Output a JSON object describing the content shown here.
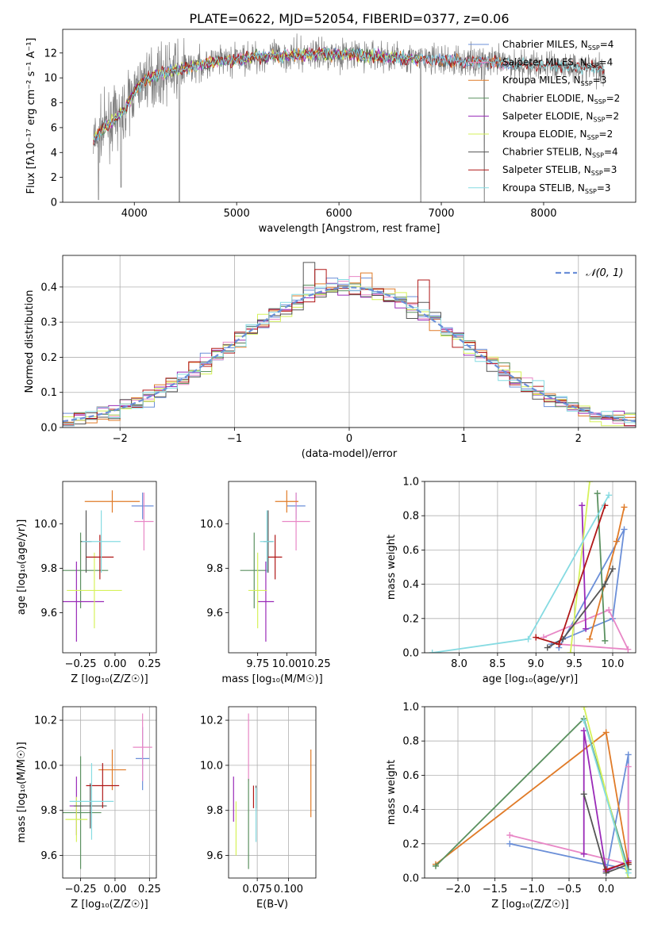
{
  "figure_title": "PLATE=0622, MJD=52054, FIBERID=0377, z=0.06",
  "colors": {
    "chabrier_miles": "#6b8fd8",
    "salpeter_miles": "#e887c6",
    "kroupa_miles": "#e07b28",
    "chabrier_elodie": "#5b9160",
    "salpeter_elodie": "#9a2bb8",
    "kroupa_elodie": "#d6f25a",
    "chabrier_stelib": "#555555",
    "salpeter_stelib": "#b01818",
    "kroupa_stelib": "#86dbe2",
    "observed": "#808080",
    "normal": "#6b8fd8"
  },
  "chart_data": [
    {
      "type": "line",
      "panel": "spectrum",
      "title": "PLATE=0622, MJD=52054, FIBERID=0377, z=0.06",
      "xlabel": "wavelength [Angstrom, rest frame]",
      "ylabel": "Flux [fλ10⁻¹⁷ erg cm⁻² s⁻¹ A⁻¹]",
      "xlim": [
        3300,
        8900
      ],
      "ylim": [
        0,
        13.9
      ],
      "xticks": [
        4000,
        5000,
        6000,
        7000,
        8000
      ],
      "yticks": [
        0,
        2,
        4,
        6,
        8,
        10,
        12
      ],
      "grid": false,
      "legend_position": "right",
      "legend": [
        {
          "key": "chabrier_miles",
          "label": "Chabrier MILES, N",
          "sub": "SSP",
          "tail": "=4"
        },
        {
          "key": "salpeter_miles",
          "label": "Salpeter MILES, N",
          "sub": "SSP",
          "tail": "=4"
        },
        {
          "key": "kroupa_miles",
          "label": "Kroupa MILES, N",
          "sub": "SSP",
          "tail": "=3"
        },
        {
          "key": "chabrier_elodie",
          "label": "Chabrier ELODIE, N",
          "sub": "SSP",
          "tail": "=2"
        },
        {
          "key": "salpeter_elodie",
          "label": "Salpeter ELODIE, N",
          "sub": "SSP",
          "tail": "=2"
        },
        {
          "key": "kroupa_elodie",
          "label": "Kroupa ELODIE, N",
          "sub": "SSP",
          "tail": "=2"
        },
        {
          "key": "chabrier_stelib",
          "label": "Chabrier STELIB, N",
          "sub": "SSP",
          "tail": "=4"
        },
        {
          "key": "salpeter_stelib",
          "label": "Salpeter STELIB, N",
          "sub": "SSP",
          "tail": "=3"
        },
        {
          "key": "kroupa_stelib",
          "label": "Kroupa STELIB, N",
          "sub": "SSP",
          "tail": "=3"
        }
      ],
      "model_continuum": {
        "x": [
          3600,
          3700,
          3800,
          3900,
          4000,
          4100,
          4300,
          4500,
          4800,
          5000,
          5200,
          5500,
          5800,
          6000,
          6300,
          6600,
          7000,
          7400,
          7700,
          8000,
          8300,
          8600
        ],
        "y": [
          5.0,
          6.0,
          6.6,
          7.4,
          8.9,
          9.9,
          10.4,
          10.8,
          11.3,
          11.5,
          11.7,
          11.8,
          11.9,
          11.9,
          11.8,
          11.6,
          11.4,
          11.3,
          11.1,
          11.0,
          10.9,
          10.7
        ]
      },
      "model_end": {
        "chabrier_miles": 7700,
        "salpeter_miles": 7700,
        "kroupa_miles": 7600,
        "chabrier_elodie": 6800,
        "salpeter_elodie": 6800,
        "kroupa_elodie": 6800,
        "chabrier_stelib": 8600,
        "salpeter_stelib": 8600,
        "kroupa_stelib": 8600
      },
      "observed_noise_amplitude": 1.6,
      "observed_dips": [
        {
          "x": 3650,
          "y": 0.2
        },
        {
          "x": 3870,
          "y": 1.2
        },
        {
          "x": 4440,
          "y": 0.0
        },
        {
          "x": 6800,
          "y": 0.0
        },
        {
          "x": 7420,
          "y": 0.0
        }
      ]
    },
    {
      "type": "histogram",
      "panel": "residuals",
      "xlabel": "(data-model)/error",
      "ylabel": "Normed distribution",
      "xlim": [
        -2.5,
        2.5
      ],
      "ylim": [
        0,
        0.49
      ],
      "xticks": [
        -2,
        -1,
        0,
        1,
        2
      ],
      "yticks": [
        0.0,
        0.1,
        0.2,
        0.3,
        0.4
      ],
      "grid": true,
      "bin_width": 0.1,
      "legend_position": "top-right",
      "normal_label": "𝒩(0, 1)",
      "series_keys": [
        "chabrier_miles",
        "salpeter_miles",
        "kroupa_miles",
        "chabrier_elodie",
        "salpeter_elodie",
        "kroupa_elodie",
        "chabrier_stelib",
        "salpeter_stelib",
        "kroupa_stelib"
      ],
      "highlights": [
        {
          "x": -0.3,
          "y": 0.47
        },
        {
          "x": -0.2,
          "y": 0.45
        },
        {
          "x": 0.7,
          "y": 0.42
        },
        {
          "x": 0.2,
          "y": 0.44
        },
        {
          "x": 0.1,
          "y": 0.43
        }
      ]
    },
    {
      "type": "errorbar",
      "panel": "age_vs_Z",
      "xlabel": "Z [log₁₀(Z/Z☉)]",
      "ylabel": "age  [log₁₀(age/yr)]",
      "xlim": [
        -0.38,
        0.3
      ],
      "ylim": [
        9.42,
        10.19
      ],
      "xticks": [
        -0.25,
        0.0,
        0.25
      ],
      "yticks": [
        9.6,
        9.8,
        10.0
      ],
      "grid": false,
      "points": [
        {
          "key": "chabrier_miles",
          "x": 0.2,
          "xerr": 0.08,
          "y": 10.08,
          "yerr": 0.06
        },
        {
          "key": "salpeter_miles",
          "x": 0.21,
          "xerr": 0.07,
          "y": 10.01,
          "yerr": 0.13
        },
        {
          "key": "kroupa_miles",
          "x": -0.02,
          "xerr": 0.2,
          "y": 10.1,
          "yerr": 0.05
        },
        {
          "key": "chabrier_elodie",
          "x": -0.25,
          "xerr": 0.2,
          "y": 9.79,
          "yerr": 0.17
        },
        {
          "key": "salpeter_elodie",
          "x": -0.28,
          "xerr": 0.2,
          "y": 9.65,
          "yerr": 0.18
        },
        {
          "key": "kroupa_elodie",
          "x": -0.15,
          "xerr": 0.2,
          "y": 9.7,
          "yerr": 0.17
        },
        {
          "key": "chabrier_stelib",
          "x": -0.21,
          "xerr": 0.04,
          "y": 9.92,
          "yerr": 0.14
        },
        {
          "key": "salpeter_stelib",
          "x": -0.11,
          "xerr": 0.1,
          "y": 9.85,
          "yerr": 0.1
        },
        {
          "key": "kroupa_stelib",
          "x": -0.1,
          "xerr": 0.14,
          "y": 9.92,
          "yerr": 0.14
        }
      ]
    },
    {
      "type": "errorbar",
      "panel": "age_vs_mass",
      "xlabel": "mass [log₁₀(M/M☉)]",
      "ylabel": "",
      "xlim": [
        9.5,
        10.25
      ],
      "ylim": [
        9.42,
        10.19
      ],
      "xticks": [
        9.75,
        10.0,
        10.25
      ],
      "yticks": [
        9.6,
        9.8,
        10.0
      ],
      "grid": false,
      "points": [
        {
          "key": "chabrier_miles",
          "x": 10.08,
          "xerr": 0.08,
          "y": 10.08,
          "yerr": 0.06
        },
        {
          "key": "salpeter_miles",
          "x": 10.08,
          "xerr": 0.12,
          "y": 10.01,
          "yerr": 0.13
        },
        {
          "key": "kroupa_miles",
          "x": 10.0,
          "xerr": 0.1,
          "y": 10.1,
          "yerr": 0.05
        },
        {
          "key": "chabrier_elodie",
          "x": 9.72,
          "xerr": 0.12,
          "y": 9.79,
          "yerr": 0.17
        },
        {
          "key": "salpeter_elodie",
          "x": 9.82,
          "xerr": 0.07,
          "y": 9.65,
          "yerr": 0.18
        },
        {
          "key": "kroupa_elodie",
          "x": 9.75,
          "xerr": 0.08,
          "y": 9.7,
          "yerr": 0.17
        },
        {
          "key": "chabrier_stelib",
          "x": 9.84,
          "xerr": 0.04,
          "y": 9.92,
          "yerr": 0.14
        },
        {
          "key": "salpeter_stelib",
          "x": 9.9,
          "xerr": 0.06,
          "y": 9.85,
          "yerr": 0.1
        },
        {
          "key": "kroupa_stelib",
          "x": 9.83,
          "xerr": 0.06,
          "y": 9.92,
          "yerr": 0.14
        }
      ]
    },
    {
      "type": "line",
      "panel": "weight_vs_age",
      "xlabel": "age  [log₁₀(age/yr)]",
      "ylabel": "mass weight",
      "xlim": [
        7.55,
        10.3
      ],
      "ylim": [
        0,
        1
      ],
      "xticks": [
        8.0,
        8.5,
        9.0,
        9.5,
        10.0
      ],
      "yticks": [
        0.0,
        0.2,
        0.4,
        0.6,
        0.8,
        1.0
      ],
      "grid": true,
      "series": [
        {
          "key": "chabrier_miles",
          "x": [
            9.2,
            10.0,
            10.15,
            9.3
          ],
          "y": [
            0.05,
            0.2,
            0.72,
            0.03
          ]
        },
        {
          "key": "salpeter_miles",
          "x": [
            9.1,
            9.95,
            10.2,
            9.3
          ],
          "y": [
            0.09,
            0.25,
            0.02,
            0.05
          ]
        },
        {
          "key": "kroupa_miles",
          "x": [
            9.7,
            10.05,
            10.15
          ],
          "y": [
            0.08,
            0.65,
            0.85
          ]
        },
        {
          "key": "chabrier_elodie",
          "x": [
            9.8,
            9.9
          ],
          "y": [
            0.93,
            0.07
          ]
        },
        {
          "key": "salpeter_elodie",
          "x": [
            9.6,
            9.65
          ],
          "y": [
            0.86,
            0.14
          ]
        },
        {
          "key": "kroupa_elodie",
          "x": [
            9.7,
            9.45
          ],
          "y": [
            1.0,
            0.0
          ]
        },
        {
          "key": "chabrier_stelib",
          "x": [
            9.15,
            9.35,
            9.9,
            10.0
          ],
          "y": [
            0.03,
            0.08,
            0.4,
            0.49
          ]
        },
        {
          "key": "salpeter_stelib",
          "x": [
            9.0,
            9.3,
            9.9
          ],
          "y": [
            0.09,
            0.05,
            0.86
          ]
        },
        {
          "key": "kroupa_stelib",
          "x": [
            7.65,
            8.9,
            9.95
          ],
          "y": [
            0.0,
            0.08,
            0.92
          ]
        }
      ]
    },
    {
      "type": "errorbar",
      "panel": "mass_vs_Z",
      "xlabel": "Z [log₁₀(Z/Z☉)]",
      "ylabel": "mass [log₁₀(M/M☉)]",
      "xlim": [
        -0.38,
        0.3
      ],
      "ylim": [
        9.5,
        10.26
      ],
      "xticks": [
        -0.25,
        0.0,
        0.25
      ],
      "yticks": [
        9.6,
        9.8,
        10.0,
        10.2
      ],
      "grid": true,
      "points": [
        {
          "key": "chabrier_miles",
          "x": 0.2,
          "xerr": 0.05,
          "y": 10.03,
          "yerr": 0.14
        },
        {
          "key": "salpeter_miles",
          "x": 0.2,
          "xerr": 0.07,
          "y": 10.08,
          "yerr": 0.15
        },
        {
          "key": "kroupa_miles",
          "x": -0.02,
          "xerr": 0.1,
          "y": 9.98,
          "yerr": 0.09
        },
        {
          "key": "chabrier_elodie",
          "x": -0.25,
          "xerr": 0.15,
          "y": 9.79,
          "yerr": 0.25
        },
        {
          "key": "salpeter_elodie",
          "x": -0.28,
          "xerr": 0.05,
          "y": 9.82,
          "yerr": 0.13
        },
        {
          "key": "kroupa_elodie",
          "x": -0.28,
          "xerr": 0.08,
          "y": 9.76,
          "yerr": 0.1
        },
        {
          "key": "chabrier_stelib",
          "x": -0.18,
          "xerr": 0.12,
          "y": 9.82,
          "yerr": 0.1
        },
        {
          "key": "salpeter_stelib",
          "x": -0.09,
          "xerr": 0.12,
          "y": 9.91,
          "yerr": 0.1
        },
        {
          "key": "kroupa_stelib",
          "x": -0.17,
          "xerr": 0.16,
          "y": 9.84,
          "yerr": 0.17
        }
      ]
    },
    {
      "type": "errorbar",
      "panel": "mass_vs_ebv",
      "xlabel": "E(B-V)",
      "ylabel": "",
      "xlim": [
        0.052,
        0.122
      ],
      "ylim": [
        9.5,
        10.26
      ],
      "xticks": [
        0.075,
        0.1
      ],
      "yticks": [
        9.6,
        9.8,
        10.0,
        10.2
      ],
      "grid": true,
      "points": [
        {
          "key": "salpeter_miles",
          "x": 0.068,
          "xerr": 0,
          "y": 10.08,
          "yerr": 0.15
        },
        {
          "key": "kroupa_miles",
          "x": 0.118,
          "xerr": 0,
          "y": 9.92,
          "yerr": 0.15
        },
        {
          "key": "chabrier_elodie",
          "x": 0.068,
          "xerr": 0,
          "y": 9.74,
          "yerr": 0.2
        },
        {
          "key": "salpeter_elodie",
          "x": 0.056,
          "xerr": 0,
          "y": 9.85,
          "yerr": 0.1
        },
        {
          "key": "kroupa_elodie",
          "x": 0.058,
          "xerr": 0,
          "y": 9.72,
          "yerr": 0.12
        },
        {
          "key": "chabrier_stelib",
          "x": 0.074,
          "xerr": 0,
          "y": 9.86,
          "yerr": 0.05
        },
        {
          "key": "salpeter_stelib",
          "x": 0.072,
          "xerr": 0,
          "y": 9.86,
          "yerr": 0.05
        },
        {
          "key": "kroupa_stelib",
          "x": 0.074,
          "xerr": 0,
          "y": 9.78,
          "yerr": 0.12
        }
      ]
    },
    {
      "type": "line",
      "panel": "weight_vs_Z",
      "xlabel": "Z [log₁₀(Z/Z☉)]",
      "ylabel": "mass weight",
      "xlim": [
        -2.45,
        0.4
      ],
      "ylim": [
        0,
        1
      ],
      "xticks": [
        -2.0,
        -1.5,
        -1.0,
        -0.5,
        0.0
      ],
      "yticks": [
        0.0,
        0.2,
        0.4,
        0.6,
        0.8,
        1.0
      ],
      "grid": true,
      "series": [
        {
          "key": "chabrier_miles",
          "x": [
            -1.3,
            0.3,
            0.3,
            0.0
          ],
          "y": [
            0.2,
            0.05,
            0.72,
            0.03
          ]
        },
        {
          "key": "salpeter_miles",
          "x": [
            -1.3,
            0.3,
            0.3
          ],
          "y": [
            0.25,
            0.08,
            0.65
          ]
        },
        {
          "key": "kroupa_miles",
          "x": [
            -2.3,
            -0.0,
            0.3
          ],
          "y": [
            0.08,
            0.85,
            0.08
          ]
        },
        {
          "key": "chabrier_elodie",
          "x": [
            -2.3,
            -0.3,
            0.3
          ],
          "y": [
            0.07,
            0.93,
            0.05
          ]
        },
        {
          "key": "salpeter_elodie",
          "x": [
            -0.3,
            -0.3,
            0.0,
            0.3
          ],
          "y": [
            0.14,
            0.86,
            0.04,
            0.1
          ]
        },
        {
          "key": "kroupa_elodie",
          "x": [
            -0.3,
            0.3
          ],
          "y": [
            1.0,
            0.0
          ]
        },
        {
          "key": "chabrier_stelib",
          "x": [
            -0.3,
            0.0,
            0.3
          ],
          "y": [
            0.49,
            0.03,
            0.08
          ]
        },
        {
          "key": "salpeter_stelib",
          "x": [
            0.0,
            0.3
          ],
          "y": [
            0.05,
            0.09
          ]
        },
        {
          "key": "kroupa_stelib",
          "x": [
            -0.3,
            0.3
          ],
          "y": [
            0.92,
            0.03
          ]
        }
      ]
    }
  ]
}
